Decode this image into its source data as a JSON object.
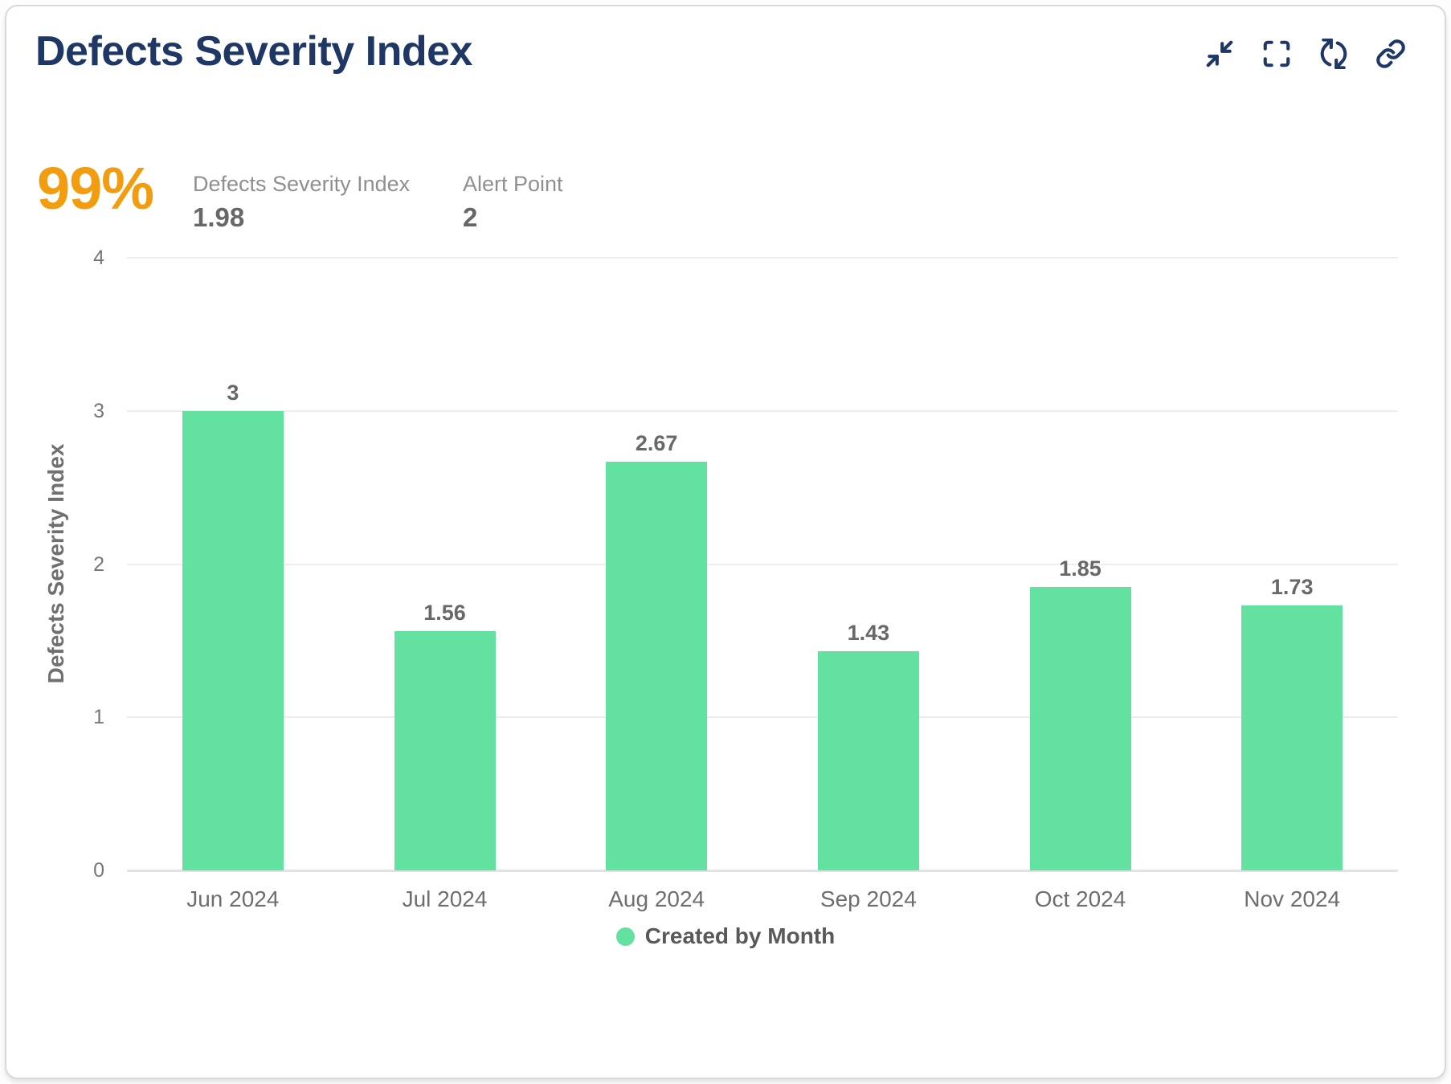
{
  "card": {
    "title": "Defects Severity Index",
    "toolbar": {
      "icons": [
        "collapse-icon",
        "fullscreen-icon",
        "refresh-icon",
        "link-icon"
      ]
    }
  },
  "kpi": {
    "percent": "99%",
    "stats": [
      {
        "label": "Defects Severity Index",
        "value": "1.98"
      },
      {
        "label": "Alert Point",
        "value": "2"
      }
    ]
  },
  "chart_data": {
    "type": "bar",
    "title": "Defects Severity Index",
    "categories": [
      "Jun 2024",
      "Jul 2024",
      "Aug 2024",
      "Sep 2024",
      "Oct 2024",
      "Nov 2024"
    ],
    "series": [
      {
        "name": "Created by Month",
        "values": [
          3,
          1.56,
          2.67,
          1.43,
          1.85,
          1.73
        ]
      }
    ],
    "data_labels": [
      "3",
      "1.56",
      "2.67",
      "1.43",
      "1.85",
      "1.73"
    ],
    "xlabel": "",
    "ylabel": "Defects Severity Index",
    "ylim": [
      0,
      4
    ],
    "yticks": [
      0,
      1,
      2,
      3,
      4
    ],
    "grid": true,
    "legend_position": "bottom",
    "bar_color": "#63e1a1"
  },
  "colors": {
    "navy": "#1e3765",
    "orange": "#f29c0f",
    "green": "#63e1a1"
  }
}
